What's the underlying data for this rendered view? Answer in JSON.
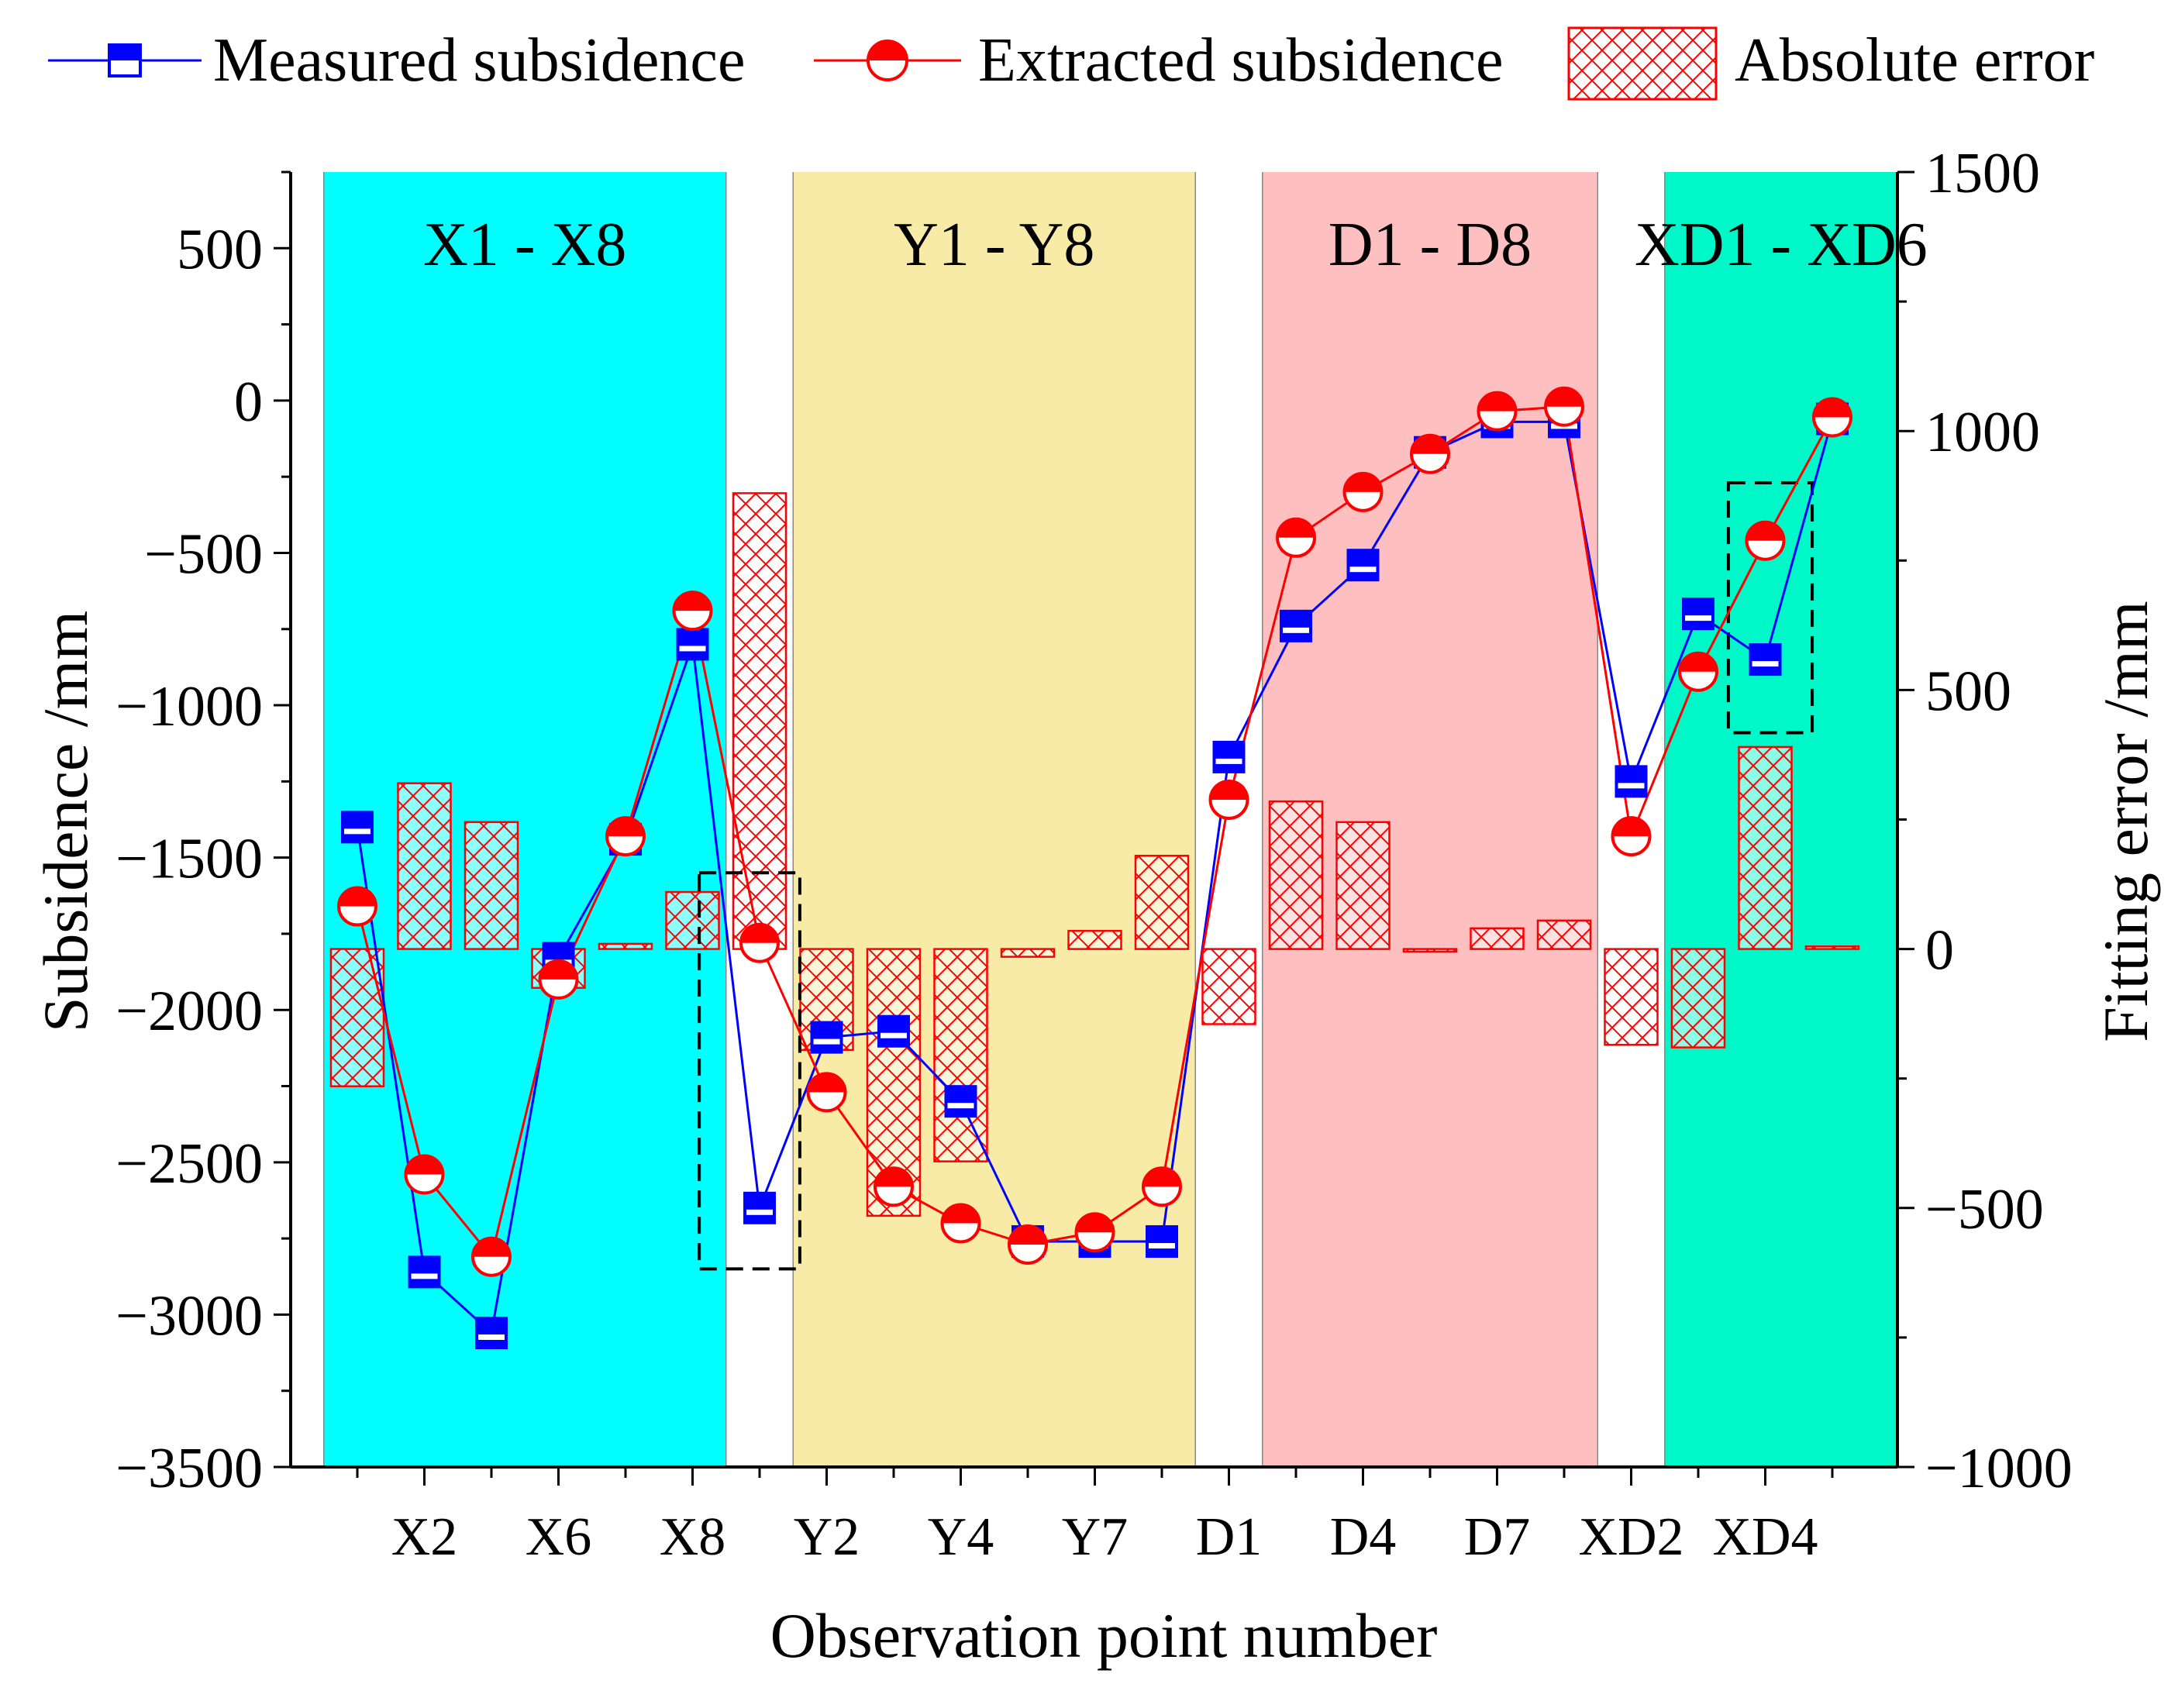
{
  "chart_data": {
    "type": "line+bar",
    "title": "",
    "xlabel": "Observation point number",
    "ylabel_left": "Subsidence /mm",
    "ylabel_right": "Fitting error /mm",
    "ylim_left": [
      -3500,
      750
    ],
    "ylim_right": [
      -1000,
      1500
    ],
    "yticks_left": [
      500,
      0,
      -500,
      -1000,
      -1500,
      -2000,
      -2500,
      -3000,
      -3500
    ],
    "yticks_left_labels": [
      "500",
      "0",
      "−500",
      "−1000",
      "−1500",
      "−2000",
      "−2500",
      "−3000",
      "−3500"
    ],
    "yticks_right": [
      1500,
      1000,
      500,
      0,
      -500,
      -1000
    ],
    "yticks_right_labels": [
      "1500",
      "1000",
      "500",
      "0",
      "−500",
      "−1000"
    ],
    "x_tick_labels": [
      {
        "index": 1,
        "label": "X2"
      },
      {
        "index": 3,
        "label": "X6"
      },
      {
        "index": 5,
        "label": "X8"
      },
      {
        "index": 7,
        "label": "Y2"
      },
      {
        "index": 9,
        "label": "Y4"
      },
      {
        "index": 11,
        "label": "Y7"
      },
      {
        "index": 13,
        "label": "D1"
      },
      {
        "index": 15,
        "label": "D4"
      },
      {
        "index": 17,
        "label": "D7"
      },
      {
        "index": 19,
        "label": "XD2"
      },
      {
        "index": 21,
        "label": "XD4"
      }
    ],
    "regions": [
      {
        "label": "X1 - X8",
        "x_start": -0.5,
        "x_end": 5.5,
        "color": "#00FFFF"
      },
      {
        "label": "Y1 - Y8",
        "x_start": 6.5,
        "x_end": 12.5,
        "color": "#F8EBA8"
      },
      {
        "label": "D1 - D8",
        "x_start": 13.5,
        "x_end": 18.5,
        "color": "#FDBFBF"
      },
      {
        "label": "XD1 - XD6",
        "x_start": 19.5,
        "x_end": 23.5,
        "color": "#00F8C8"
      }
    ],
    "legend": {
      "position": "top",
      "entries": [
        "Measured subsidence",
        "Extracted subsidence",
        "Absolute error"
      ]
    },
    "series": [
      {
        "name": "Measured subsidence",
        "axis": "left",
        "kind": "line",
        "color": "#0000FF",
        "marker": "square",
        "values": [
          -1400,
          -2860,
          -3060,
          -1830,
          -1440,
          -800,
          -2650,
          -2090,
          -2070,
          -2300,
          -2760,
          -2760,
          -2760,
          -1170,
          -740,
          -540,
          -170,
          -70,
          -70,
          -1250,
          -700,
          -850,
          -60
        ]
      },
      {
        "name": "Extracted subsidence",
        "axis": "left",
        "kind": "line",
        "color": "#FF0000",
        "marker": "circle",
        "values": [
          -1660,
          -2540,
          -2810,
          -1900,
          -1430,
          -690,
          -1780,
          -2270,
          -2580,
          -2700,
          -2770,
          -2730,
          -2580,
          -1310,
          -450,
          -300,
          -175,
          -35,
          -20,
          -1430,
          -890,
          -460,
          -55
        ]
      },
      {
        "name": "Absolute error",
        "axis": "right",
        "kind": "bar",
        "color": "#FF0000",
        "values": [
          -265,
          320,
          245,
          -75,
          10,
          110,
          880,
          -195,
          -515,
          -410,
          -15,
          35,
          180,
          -145,
          285,
          245,
          -5,
          40,
          55,
          -185,
          -190,
          390,
          5
        ]
      }
    ],
    "annotations": [
      {
        "type": "dashed-box",
        "x_from": 5.1,
        "x_to": 6.6,
        "y_from": -2850,
        "y_to": -1550,
        "axis": "left"
      },
      {
        "type": "dashed-box",
        "x_from": 20.45,
        "x_to": 21.7,
        "y_from": -1090,
        "y_to": -270,
        "axis": "left"
      }
    ]
  }
}
